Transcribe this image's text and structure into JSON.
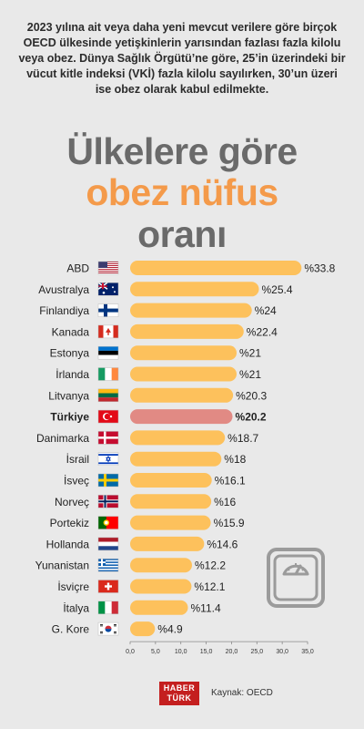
{
  "intro_text": "2023 yılına ait veya daha yeni mevcut verilere göre birçok OECD ülkesinde yetişkinlerin yarısından fazlası fazla kilolu veya obez. Dünya Sağlık Örgütü’ne göre, 25’in üzerindeki bir vücut kitle indeksi (VKİ) fazla kilolu sayılırken, 30’un üzeri ise obez olarak kabul edilmekte.",
  "title_line1": "Ülkelere göre",
  "title_line2": "obez nüfus",
  "title_line3": "oranı",
  "colors": {
    "bar": "#fdc15c",
    "highlight_bar": "#e18a84",
    "title_gray": "#6a6a6a",
    "title_orange": "#f49a4a",
    "logo_red": "#c41f1f"
  },
  "chart_data": {
    "type": "bar",
    "orientation": "horizontal",
    "categories": [
      "ABD",
      "Avustralya",
      "Finlandiya",
      "Kanada",
      "Estonya",
      "İrlanda",
      "Litvanya",
      "Türkiye",
      "Danimarka",
      "İsrail",
      "İsveç",
      "Norveç",
      "Portekiz",
      "Hollanda",
      "Yunanistan",
      "İsviçre",
      "İtalya",
      "G. Kore"
    ],
    "values": [
      33.8,
      25.4,
      24,
      22.4,
      21,
      21,
      20.3,
      20.2,
      18.7,
      18,
      16.1,
      16,
      15.9,
      14.6,
      12.2,
      12.1,
      11.4,
      4.9
    ],
    "value_labels": [
      "%33.8",
      "%25.4",
      "%24",
      "%22.4",
      "%21",
      "%21",
      "%20.3",
      "%20.2",
      "%18.7",
      "%18",
      "%16.1",
      "%16",
      "%15.9",
      "%14.6",
      "%12.2",
      "%12.1",
      "%11.4",
      "%4.9"
    ],
    "highlight": "Türkiye",
    "flags": [
      "us-flag-icon",
      "au-flag-icon",
      "fi-flag-icon",
      "ca-flag-icon",
      "ee-flag-icon",
      "ie-flag-icon",
      "lt-flag-icon",
      "tr-flag-icon",
      "dk-flag-icon",
      "il-flag-icon",
      "se-flag-icon",
      "no-flag-icon",
      "pt-flag-icon",
      "nl-flag-icon",
      "gr-flag-icon",
      "ch-flag-icon",
      "it-flag-icon",
      "kr-flag-icon"
    ],
    "xlim": [
      0,
      35
    ],
    "ticks": [
      0,
      5,
      10,
      15,
      20,
      25,
      30,
      35
    ],
    "tick_labels": [
      "0,0",
      "5,0",
      "10,0",
      "15,0",
      "20,0",
      "25,0",
      "30,0",
      "35,0"
    ],
    "title": "Ülkelere göre obez nüfus oranı",
    "grid": false,
    "legend": "none"
  },
  "logo_line1": "HABER",
  "logo_line2": "TÜRK",
  "source": "Kaynak: OECD"
}
